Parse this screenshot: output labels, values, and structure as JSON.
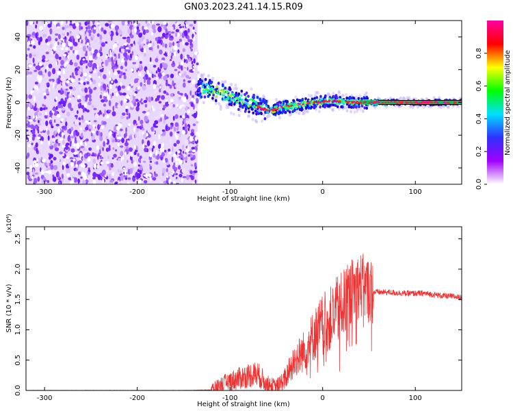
{
  "figure_title": "GN03.2023.241.14.15.R09",
  "chart_data": [
    {
      "type": "heatmap",
      "title": "GN03.2023.241.14.15.R09",
      "xlabel": "Height of straight line (km)",
      "ylabel": "Frequency (Hz)",
      "xlim": [
        -320,
        150
      ],
      "ylim": [
        -50,
        50
      ],
      "xticks": [
        -300,
        -200,
        -100,
        0,
        100
      ],
      "xtick_labels": [
        "-300",
        "-200",
        "-100",
        "0",
        "100"
      ],
      "yticks": [
        -40,
        -20,
        0,
        20,
        40
      ],
      "ytick_labels": [
        "-40",
        "-20",
        "0",
        "20",
        "40"
      ],
      "noise_region_x": [
        -320,
        -135
      ],
      "signal_ridge": [
        {
          "x": -135,
          "y": 9
        },
        {
          "x": -120,
          "y": 8
        },
        {
          "x": -100,
          "y": 3
        },
        {
          "x": -80,
          "y": 0
        },
        {
          "x": -65,
          "y": -4
        },
        {
          "x": -55,
          "y": -5
        },
        {
          "x": -45,
          "y": -3
        },
        {
          "x": -30,
          "y": -2
        },
        {
          "x": -10,
          "y": 0
        },
        {
          "x": 10,
          "y": 1
        },
        {
          "x": 30,
          "y": 0
        },
        {
          "x": 60,
          "y": 0
        },
        {
          "x": 100,
          "y": 0
        },
        {
          "x": 150,
          "y": 0
        }
      ],
      "colorbar": {
        "label": "Normalized spectral amplitude",
        "range": [
          0,
          1
        ],
        "ticks": [
          "0.0",
          "0.2",
          "0.4",
          "0.6",
          "0.8"
        ],
        "colors": [
          "#ffffff",
          "#a000ff",
          "#3030ff",
          "#00e0ff",
          "#00ff00",
          "#ffff00",
          "#ff0000",
          "#ff00a0"
        ]
      },
      "grid": false
    },
    {
      "type": "line",
      "xlabel": "Height of straight line (km)",
      "ylabel": "SNR (10 * v/v)",
      "y_multiplier_label": "(x10⁴)",
      "xlim": [
        -320,
        150
      ],
      "ylim": [
        0,
        2.7
      ],
      "xticks": [
        -300,
        -200,
        -100,
        0,
        100
      ],
      "xtick_labels": [
        "-300",
        "-200",
        "-100",
        "0",
        "100"
      ],
      "yticks": [
        0,
        0.5,
        1.0,
        1.5,
        2.0,
        2.5
      ],
      "ytick_labels": [
        "0.0",
        "0.5",
        "1.0",
        "1.5",
        "2.0",
        "2.5"
      ],
      "color": "#ee3333",
      "series": [
        {
          "x": [
            -320,
            -250,
            -200,
            -150,
            -120,
            -110,
            -100,
            -90,
            -80,
            -70,
            -60,
            -50,
            -40,
            -30,
            -20,
            -10,
            0,
            10,
            20,
            30,
            40,
            50,
            55,
            60,
            70,
            80,
            90,
            100,
            110,
            120,
            130,
            140,
            150
          ],
          "y": [
            0.0,
            0.0,
            0.0,
            0.0,
            0.01,
            0.08,
            0.15,
            0.2,
            0.25,
            0.27,
            0.1,
            0.05,
            0.2,
            0.5,
            0.65,
            0.9,
            1.1,
            1.2,
            1.4,
            1.6,
            1.75,
            1.65,
            1.62,
            1.62,
            1.62,
            1.61,
            1.6,
            1.6,
            1.6,
            1.58,
            1.56,
            1.55,
            1.53
          ]
        }
      ],
      "grid": false
    }
  ]
}
